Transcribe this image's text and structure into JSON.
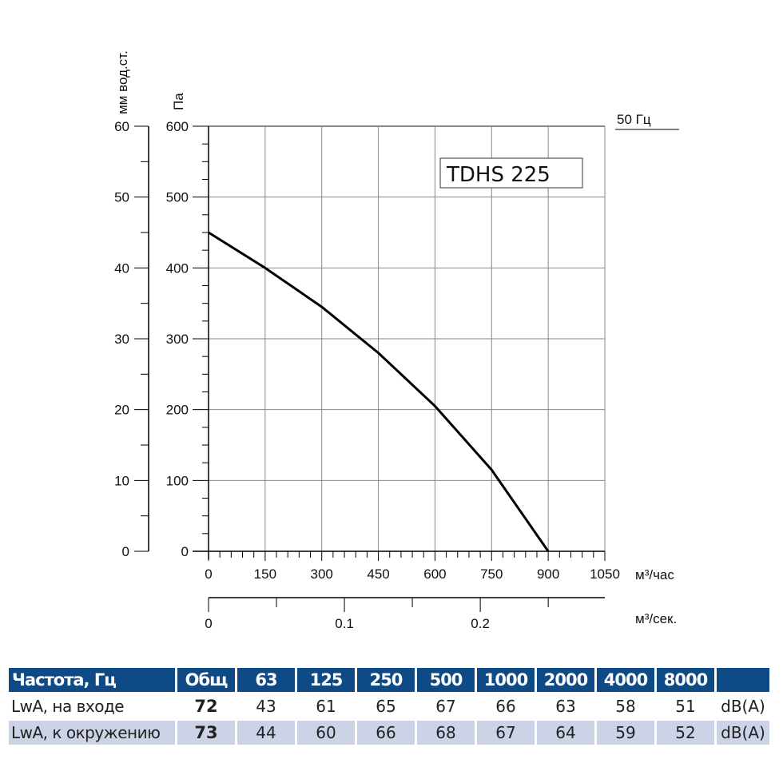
{
  "chart_data": {
    "type": "line",
    "title": "TDHS 225",
    "frequency_label": "50 Гц",
    "xlabel": "м³/час",
    "x2label": "м³/сек.",
    "ylabel": "Па",
    "y2label": "мм вод.ст.",
    "xlim": [
      0,
      1050
    ],
    "ylim": [
      0,
      600
    ],
    "y2lim": [
      0,
      60
    ],
    "x2lim": [
      0,
      0.2917
    ],
    "x_ticks": [
      0,
      150,
      300,
      450,
      600,
      750,
      900,
      1050
    ],
    "y_ticks": [
      0,
      100,
      200,
      300,
      400,
      500,
      600
    ],
    "y2_ticks": [
      0,
      10,
      20,
      30,
      40,
      50,
      60
    ],
    "x2_ticks": [
      0,
      0.1,
      0.2
    ],
    "x2_tick_labels": [
      "0",
      "0.1",
      "0.2"
    ],
    "grid": true,
    "series": [
      {
        "x": [
          0,
          150,
          300,
          450,
          600,
          750,
          900
        ],
        "y": [
          450,
          400,
          345,
          280,
          205,
          115,
          0
        ]
      }
    ]
  },
  "table": {
    "headers": [
      "Частота, Гц",
      "Общ",
      "63",
      "125",
      "250",
      "500",
      "1000",
      "2000",
      "4000",
      "8000",
      ""
    ],
    "rows": [
      {
        "label": "LwA, на входе",
        "total": "72",
        "values": [
          "43",
          "61",
          "65",
          "67",
          "66",
          "63",
          "58",
          "51"
        ],
        "unit": "dB(A)"
      },
      {
        "label": "LwA, к окружению",
        "total": "73",
        "values": [
          "44",
          "60",
          "66",
          "68",
          "67",
          "64",
          "59",
          "52"
        ],
        "unit": "dB(A)"
      }
    ]
  },
  "colors": {
    "header_bg": "#0d4a86",
    "alt_row": "#cdd3e7",
    "curve": "#000000",
    "grid": "#888888"
  }
}
